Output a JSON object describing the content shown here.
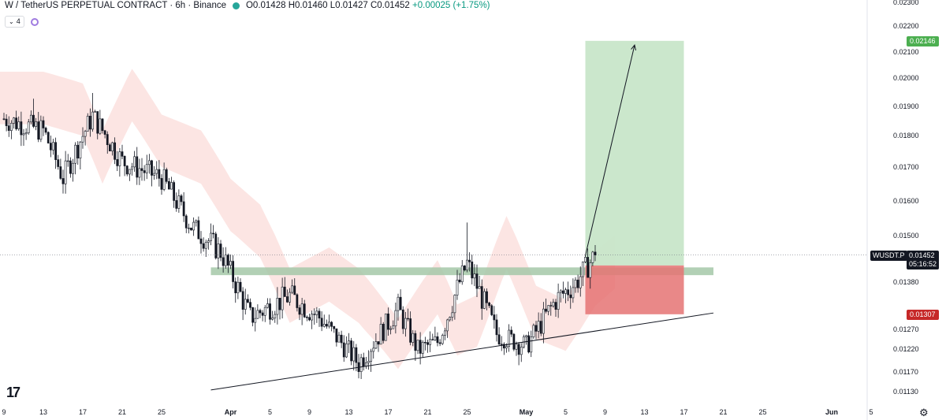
{
  "header": {
    "symbol_line": "W / TetherUS PERPETUAL CONTRACT · 6h · Binance",
    "open": "O0.01428",
    "high": "H0.01460",
    "low": "L0.01427",
    "close": "C0.01452",
    "change": "+0.00025 (+1.75%)",
    "status_color": "#26a69a"
  },
  "indicator_pill": {
    "label": "4",
    "icon": "chevron-down-icon"
  },
  "logo_text": "17",
  "price_axis": {
    "ticks": [
      "0.02300",
      "0.02200",
      "0.02100",
      "0.02000",
      "0.01900",
      "0.01800",
      "0.01700",
      "0.01600",
      "0.01500",
      "0.01380",
      "0.01270",
      "0.01220",
      "0.01170",
      "0.01130"
    ],
    "target_label": "0.02146",
    "stop_label": "0.01307",
    "symbol_tag": "WUSDT.P",
    "last_price": "0.01452",
    "countdown": "05:16:52"
  },
  "time_axis": {
    "ticks": [
      "9",
      "13",
      "17",
      "21",
      "25",
      "Apr",
      "5",
      "9",
      "13",
      "17",
      "21",
      "25",
      "May",
      "5",
      "9",
      "13",
      "17",
      "21",
      "25",
      "Jun",
      "5"
    ]
  },
  "chart_data": {
    "type": "candlestick",
    "interval": "6h",
    "ylim": [
      0.011,
      0.0231
    ],
    "xrange_dates": [
      "2024-03-09",
      "2024-06-07"
    ],
    "last_price": 0.01452,
    "resistance_zone": [
      0.014,
      0.0142
    ],
    "target_price": 0.02146,
    "stop_price": 0.01307,
    "entry_price": 0.01425,
    "ascending_trendline": [
      [
        "2024-03-30",
        0.01135
      ],
      [
        "2024-05-20",
        0.0131
      ]
    ],
    "projection_arrow": [
      [
        "2024-05-07",
        0.0145
      ],
      [
        "2024-05-12",
        0.0213
      ]
    ],
    "key_closes": [
      [
        "2024-03-09",
        0.0186
      ],
      [
        "2024-03-13",
        0.0182
      ],
      [
        "2024-03-15",
        0.0167
      ],
      [
        "2024-03-18",
        0.0187
      ],
      [
        "2024-03-21",
        0.0172
      ],
      [
        "2024-03-25",
        0.0167
      ],
      [
        "2024-03-28",
        0.0153
      ],
      [
        "2024-03-31",
        0.0146
      ],
      [
        "2024-04-03",
        0.013
      ],
      [
        "2024-04-07",
        0.0135
      ],
      [
        "2024-04-10",
        0.013
      ],
      [
        "2024-04-14",
        0.0119
      ],
      [
        "2024-04-18",
        0.0132
      ],
      [
        "2024-04-20",
        0.0122
      ],
      [
        "2024-04-22",
        0.0124
      ],
      [
        "2024-04-25",
        0.0143
      ],
      [
        "2024-04-28",
        0.0126
      ],
      [
        "2024-05-01",
        0.0123
      ],
      [
        "2024-05-04",
        0.0134
      ],
      [
        "2024-05-06",
        0.0138
      ],
      [
        "2024-05-08",
        0.01452
      ]
    ],
    "colors": {
      "candle": "#131722",
      "target_box": "#c8e6c9",
      "stop_box": "#e57373",
      "zone": "#a5c8a8",
      "cloud": "#fbdcd9"
    }
  }
}
